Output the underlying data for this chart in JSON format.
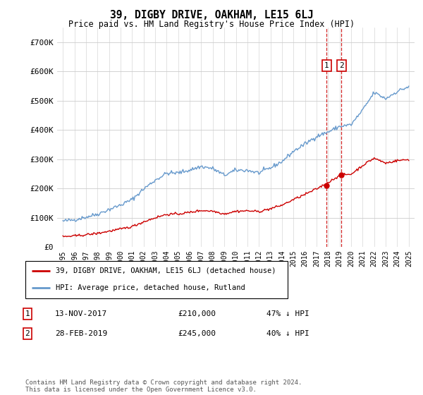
{
  "title": "39, DIGBY DRIVE, OAKHAM, LE15 6LJ",
  "subtitle": "Price paid vs. HM Land Registry's House Price Index (HPI)",
  "footer": "Contains HM Land Registry data © Crown copyright and database right 2024.\nThis data is licensed under the Open Government Licence v3.0.",
  "legend_line1": "39, DIGBY DRIVE, OAKHAM, LE15 6LJ (detached house)",
  "legend_line2": "HPI: Average price, detached house, Rutland",
  "annotation1_label": "1",
  "annotation1_date": "13-NOV-2017",
  "annotation1_price": "£210,000",
  "annotation1_hpi": "47% ↓ HPI",
  "annotation2_label": "2",
  "annotation2_date": "28-FEB-2019",
  "annotation2_price": "£245,000",
  "annotation2_hpi": "40% ↓ HPI",
  "hpi_color": "#6699cc",
  "price_color": "#cc0000",
  "vline_color": "#cc0000",
  "ylim": [
    0,
    750000
  ],
  "yticks": [
    0,
    100000,
    200000,
    300000,
    400000,
    500000,
    600000,
    700000
  ],
  "ytick_labels": [
    "£0",
    "£100K",
    "£200K",
    "£300K",
    "£400K",
    "£500K",
    "£600K",
    "£700K"
  ],
  "sale1_year": 2017.87,
  "sale1_value": 210000,
  "sale2_year": 2019.16,
  "sale2_value": 245000,
  "start_year": 1995,
  "end_year": 2025,
  "hpi_anchors_years": [
    1995,
    1996,
    1997,
    1998,
    1999,
    2000,
    2001,
    2002,
    2003,
    2004,
    2005,
    2006,
    2007,
    2008,
    2009,
    2010,
    2011,
    2012,
    2013,
    2014,
    2015,
    2016,
    2017,
    2018,
    2019,
    2020,
    2021,
    2022,
    2023,
    2024,
    2025
  ],
  "hpi_anchors_vals": [
    88000,
    93000,
    102000,
    112000,
    128000,
    143000,
    162000,
    198000,
    228000,
    252000,
    253000,
    263000,
    275000,
    268000,
    245000,
    262000,
    262000,
    253000,
    270000,
    292000,
    327000,
    352000,
    378000,
    393000,
    412000,
    418000,
    468000,
    528000,
    507000,
    532000,
    548000
  ],
  "price_ratio_years": [
    1995,
    2000,
    2005,
    2010,
    2015,
    2017,
    2019,
    2021,
    2022,
    2023,
    2024,
    2025
  ],
  "price_ratio_vals": [
    0.395,
    0.425,
    0.445,
    0.465,
    0.495,
    0.525,
    0.595,
    0.595,
    0.575,
    0.565,
    0.555,
    0.545
  ]
}
